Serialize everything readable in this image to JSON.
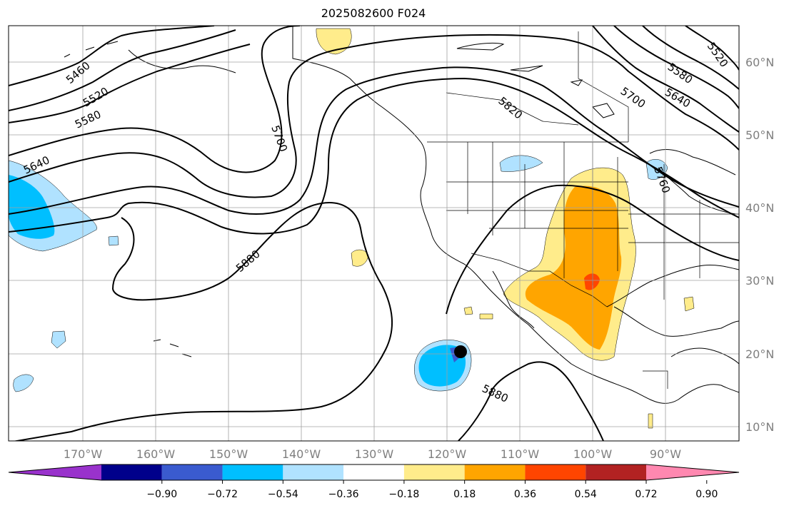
{
  "title": "2025082600 F024",
  "map": {
    "lon_range": [
      -180,
      -80
    ],
    "lat_range": [
      8,
      65
    ],
    "latitude_labels": [
      "60°N",
      "50°N",
      "40°N",
      "30°N",
      "20°N",
      "10°N"
    ],
    "longitude_labels": [
      "170°W",
      "160°W",
      "150°W",
      "140°W",
      "130°W",
      "120°W",
      "110°W",
      "100°W",
      "90°W"
    ],
    "gridlines": true,
    "contour_color": "#000000",
    "contour_labels": [
      {
        "text": "5460"
      },
      {
        "text": "5520"
      },
      {
        "text": "5580"
      },
      {
        "text": "5640"
      },
      {
        "text": "5700"
      },
      {
        "text": "5880"
      },
      {
        "text": "5820"
      },
      {
        "text": "5700"
      },
      {
        "text": "5640"
      },
      {
        "text": "5580"
      },
      {
        "text": "5520"
      },
      {
        "text": "5760"
      },
      {
        "text": "5880"
      }
    ],
    "marker": {
      "type": "filled-circle",
      "color": "#000000",
      "lon": -118.5,
      "lat": 20.5
    }
  },
  "colorbar": {
    "ticks": [
      "−0.90",
      "−0.72",
      "−0.54",
      "−0.36",
      "−0.18",
      "0.18",
      "0.36",
      "0.54",
      "0.72",
      "0.90"
    ],
    "colors": [
      "#9932cc",
      "#00008b",
      "#3a5bcf",
      "#00bfff",
      "#b0e2ff",
      "#ffffff",
      "#ffec8b",
      "#ffa500",
      "#ff4500",
      "#b22222",
      "#ff88b0"
    ]
  }
}
